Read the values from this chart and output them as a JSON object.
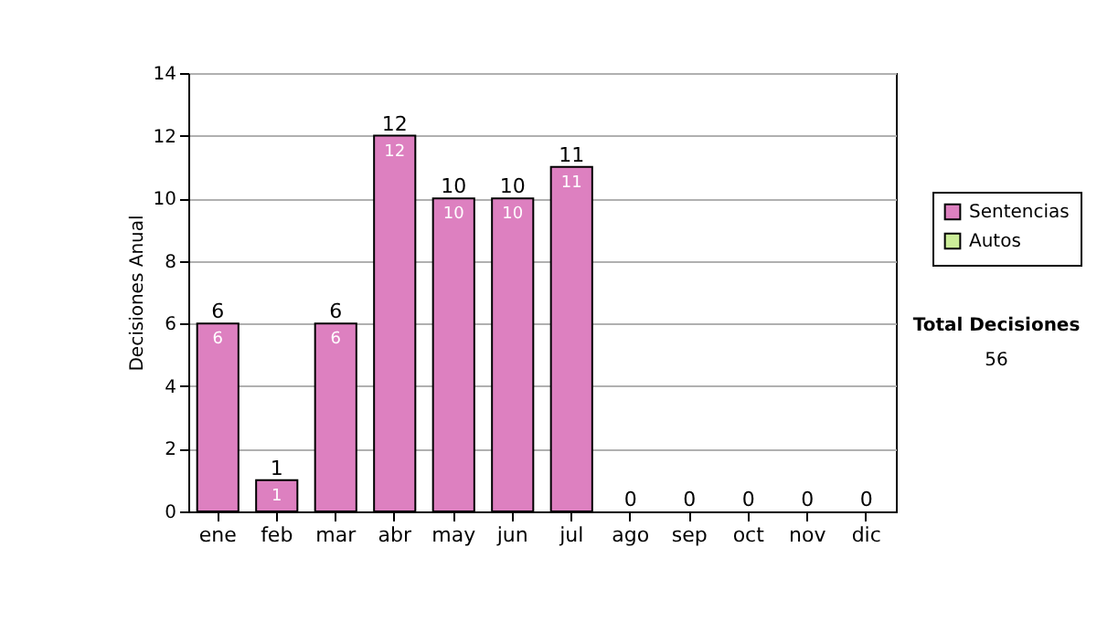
{
  "chart_data": {
    "type": "bar",
    "ylabel": "Decisiones Anual",
    "categories": [
      "ene",
      "feb",
      "mar",
      "abr",
      "may",
      "jun",
      "jul",
      "ago",
      "sep",
      "oct",
      "nov",
      "dic"
    ],
    "stacked": true,
    "series": [
      {
        "name": "Sentencias",
        "color": "#dd80c0",
        "values": [
          6,
          1,
          6,
          12,
          10,
          10,
          11,
          0,
          0,
          0,
          0,
          0
        ],
        "value_labels": [
          "6",
          "1",
          "6",
          "12",
          "10",
          "10",
          "11",
          null,
          null,
          null,
          null,
          null
        ]
      },
      {
        "name": "Autos",
        "color": "#ccee99",
        "values": [
          0,
          0,
          0,
          0,
          0,
          0,
          0,
          0,
          0,
          0,
          0,
          0
        ]
      }
    ],
    "totals": [
      "6",
      "1",
      "6",
      "12",
      "10",
      "10",
      "11",
      "0",
      "0",
      "0",
      "0",
      "0"
    ],
    "ylim": [
      0,
      14
    ],
    "yticks": [
      0,
      2,
      4,
      6,
      8,
      10,
      12,
      14
    ],
    "grid": "y",
    "legend": "right",
    "annotations": [
      "Total Decisiones",
      "56"
    ]
  }
}
